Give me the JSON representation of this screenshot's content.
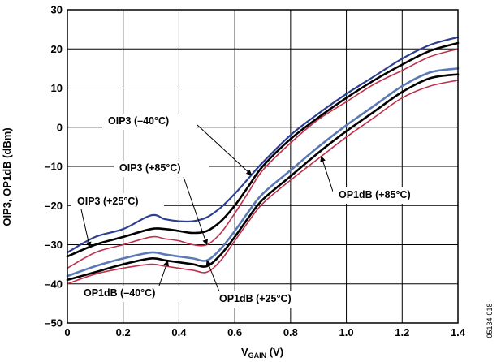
{
  "chart_data": {
    "type": "line",
    "xlabel_main": "V",
    "xlabel_sub": "GAIN",
    "xlabel_unit": " (V)",
    "ylabel": "OIP3, OP1dB (dBm)",
    "xlim": [
      0,
      1.4
    ],
    "ylim": [
      -50,
      30
    ],
    "x_ticks": [
      "0",
      "0.2",
      "0.4",
      "0.6",
      "0.8",
      "1.0",
      "1.2",
      "1.4"
    ],
    "y_ticks": [
      "30",
      "20",
      "10",
      "0",
      "–10",
      "–20",
      "–30",
      "–40",
      "–50"
    ],
    "grid": true,
    "figure_id": "05134-018",
    "series": [
      {
        "name": "OIP3 (–40°C)",
        "color": "#2e3f91",
        "width": 2.2,
        "x": [
          0,
          0.1,
          0.2,
          0.3,
          0.35,
          0.4,
          0.45,
          0.5,
          0.55,
          0.6,
          0.65,
          0.7,
          0.8,
          0.9,
          1.0,
          1.1,
          1.2,
          1.3,
          1.4
        ],
        "y": [
          -32,
          -28,
          -26,
          -22.5,
          -23.5,
          -24,
          -24,
          -23,
          -20.5,
          -17,
          -13,
          -9,
          -2,
          3.5,
          8.5,
          13,
          17.5,
          21,
          23
        ]
      },
      {
        "name": "OIP3 (+25°C)",
        "color": "#000000",
        "width": 2.6,
        "x": [
          0,
          0.1,
          0.2,
          0.3,
          0.35,
          0.4,
          0.45,
          0.5,
          0.55,
          0.6,
          0.65,
          0.7,
          0.8,
          0.9,
          1.0,
          1.1,
          1.2,
          1.3,
          1.4
        ],
        "y": [
          -33,
          -30,
          -28,
          -26,
          -26,
          -26.5,
          -27,
          -26.5,
          -24,
          -20,
          -15,
          -10,
          -3,
          2.5,
          7.5,
          12,
          16,
          19.5,
          21.5
        ]
      },
      {
        "name": "OIP3 (+85°C)",
        "color": "#c0304c",
        "width": 1.6,
        "x": [
          0,
          0.1,
          0.2,
          0.3,
          0.35,
          0.4,
          0.45,
          0.5,
          0.55,
          0.6,
          0.65,
          0.7,
          0.8,
          0.9,
          1.0,
          1.1,
          1.2,
          1.3,
          1.4
        ],
        "y": [
          -36,
          -32,
          -30,
          -28,
          -28.5,
          -29,
          -30,
          -30,
          -27,
          -22,
          -16.5,
          -11,
          -4,
          2,
          6.5,
          11,
          14.5,
          18,
          20
        ]
      },
      {
        "name": "OP1dB (–40°C)",
        "color": "#000000",
        "width": 2.6,
        "x": [
          0,
          0.1,
          0.2,
          0.3,
          0.35,
          0.4,
          0.45,
          0.5,
          0.55,
          0.6,
          0.65,
          0.7,
          0.8,
          0.9,
          1.0,
          1.1,
          1.2,
          1.3,
          1.4
        ],
        "y": [
          -39,
          -37,
          -35,
          -33.5,
          -34,
          -34.5,
          -35,
          -35.5,
          -32.5,
          -28,
          -23,
          -18.5,
          -12.5,
          -6.5,
          -1,
          4,
          9,
          12.5,
          13.5
        ]
      },
      {
        "name": "OP1dB (+25°C)",
        "color": "#5a79b5",
        "width": 2.6,
        "x": [
          0,
          0.1,
          0.2,
          0.3,
          0.35,
          0.4,
          0.45,
          0.5,
          0.55,
          0.6,
          0.65,
          0.7,
          0.8,
          0.9,
          1.0,
          1.1,
          1.2,
          1.3,
          1.4
        ],
        "y": [
          -38,
          -35.5,
          -33.5,
          -32,
          -32.5,
          -33,
          -33.5,
          -34,
          -31,
          -26.5,
          -21.5,
          -17,
          -11,
          -5,
          0.5,
          5.5,
          10.5,
          14,
          15
        ]
      },
      {
        "name": "OP1dB (+85°C)",
        "color": "#c0304c",
        "width": 1.6,
        "x": [
          0,
          0.1,
          0.2,
          0.3,
          0.35,
          0.4,
          0.45,
          0.5,
          0.55,
          0.6,
          0.65,
          0.7,
          0.8,
          0.9,
          1.0,
          1.1,
          1.2,
          1.3,
          1.4
        ],
        "y": [
          -40,
          -37.5,
          -36,
          -35,
          -35.5,
          -36,
          -36.5,
          -37,
          -34,
          -29,
          -24,
          -19.5,
          -13.5,
          -8,
          -2.5,
          2.5,
          7.5,
          10.5,
          12
        ]
      }
    ],
    "annotations": [
      {
        "text": "OIP3 (–40°C)",
        "series": 0,
        "target_x": 0.66
      },
      {
        "text": "OIP3 (+85°C)",
        "series": 2,
        "target_x": 0.5
      },
      {
        "text": "OIP3 (+25°C)",
        "series": 1,
        "target_x": 0.08
      },
      {
        "text": "OP1dB (+85°C)",
        "series": 5,
        "target_x": 0.91
      },
      {
        "text": "OP1dB (–40°C)",
        "series": 3,
        "target_x": 0.36
      },
      {
        "text": "OP1dB (+25°C)",
        "series": 4,
        "target_x": 0.5
      }
    ]
  }
}
